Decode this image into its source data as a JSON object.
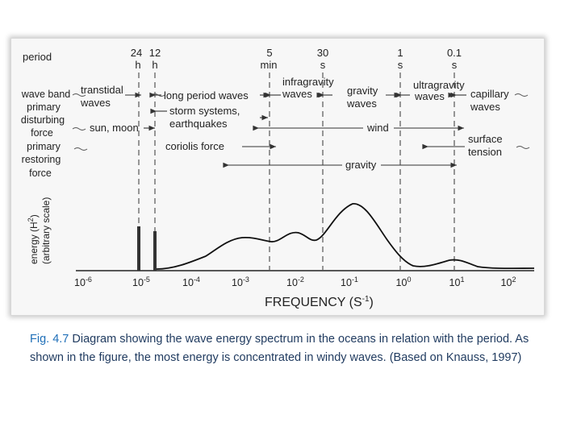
{
  "diagram": {
    "period_header": "period",
    "periods": [
      {
        "value": "24",
        "unit": "h"
      },
      {
        "value": "12",
        "unit": "h"
      },
      {
        "value": "5",
        "unit": "min"
      },
      {
        "value": "30",
        "unit": "s"
      },
      {
        "value": "1",
        "unit": "s"
      },
      {
        "value": "0.1",
        "unit": "s"
      }
    ],
    "row_labels": {
      "wave_band": "wave band",
      "primary_disturbing_1": "primary",
      "primary_disturbing_2": "disturbing",
      "primary_disturbing_3": "force",
      "primary_restoring_1": "primary",
      "primary_restoring_2": "restoring",
      "primary_restoring_3": "force"
    },
    "wave_bands": {
      "transtidal_1": "transtidal",
      "transtidal_2": "waves",
      "long_period": "long period waves",
      "infragravity_1": "infragravity",
      "infragravity_2": "waves",
      "gravity_1": "gravity",
      "gravity_2": "waves",
      "ultragravity_1": "ultragravity",
      "ultragravity_2": "waves",
      "capillary_1": "capillary",
      "capillary_2": "waves"
    },
    "disturbing_forces": {
      "storm_1": "storm systems,",
      "storm_2": "earthquakes",
      "sun_moon": "sun, moon",
      "wind": "wind"
    },
    "restoring_forces": {
      "coriolis": "coriolis force",
      "surface_1": "surface",
      "surface_2": "tension",
      "gravity": "gravity"
    },
    "y_axis_label_1": "energy (H",
    "y_axis_label_sup": "2",
    "y_axis_label_2": ")",
    "y_axis_label_3": "(arbitrary scale)",
    "x_axis_label_1": "FREQUENCY (S",
    "x_axis_label_sup": "-1",
    "x_axis_label_2": ")",
    "tick_base": "10",
    "tick_exponents": [
      "-6",
      "-5",
      "-4",
      "-3",
      "-2",
      "-1",
      "0",
      "1",
      "2"
    ]
  },
  "caption": {
    "label": "Fig. 4.7",
    "text": " Diagram showing the wave energy spectrum in the oceans in relation with the period. As shown in the figure, the most energy is concentrated in windy waves. (Based on Knauss, 1997)"
  }
}
